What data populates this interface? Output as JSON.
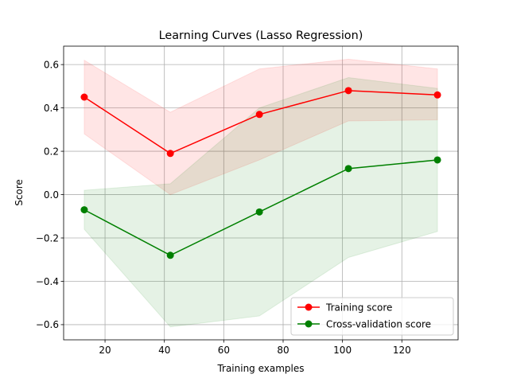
{
  "chart_data": {
    "type": "line",
    "title": "Learning Curves (Lasso Regression)",
    "xlabel": "Training examples",
    "ylabel": "Score",
    "xlim": [
      6.05,
      138.95
    ],
    "ylim": [
      -0.67,
      0.685
    ],
    "xticks": [
      20,
      40,
      60,
      80,
      100,
      120
    ],
    "yticks": [
      -0.6,
      -0.4,
      -0.2,
      0.0,
      0.2,
      0.4,
      0.6
    ],
    "grid": true,
    "legend_position": "lower-right",
    "x": [
      13,
      42,
      72,
      102,
      132
    ],
    "series": [
      {
        "name": "Training score",
        "color": "#ff0000",
        "band_color": "#ff0000",
        "values": [
          0.45,
          0.19,
          0.37,
          0.48,
          0.46
        ],
        "band_lower": [
          0.28,
          0.0,
          0.16,
          0.34,
          0.345
        ],
        "band_upper": [
          0.62,
          0.38,
          0.58,
          0.625,
          0.58
        ]
      },
      {
        "name": "Cross-validation score",
        "color": "#008000",
        "band_color": "#008000",
        "values": [
          -0.07,
          -0.28,
          -0.08,
          0.12,
          0.16
        ],
        "band_lower": [
          -0.16,
          -0.61,
          -0.56,
          -0.29,
          -0.17
        ],
        "band_upper": [
          0.02,
          0.05,
          0.4,
          0.54,
          0.49
        ]
      }
    ]
  }
}
